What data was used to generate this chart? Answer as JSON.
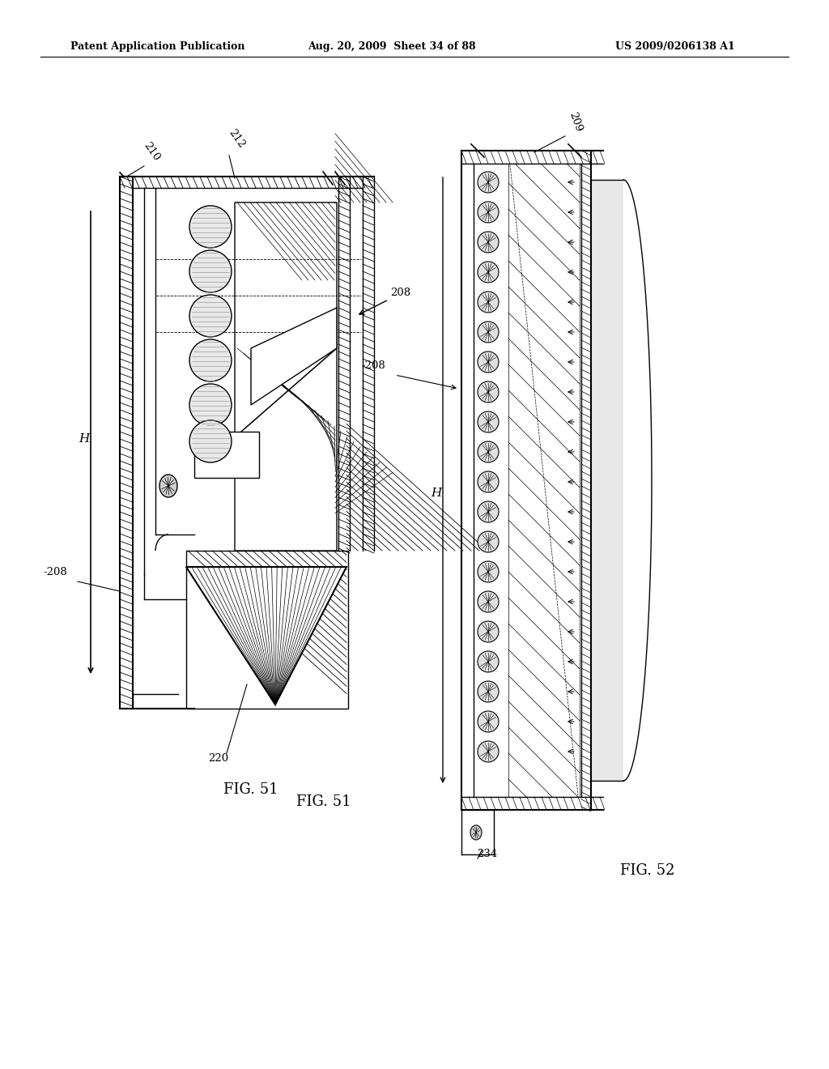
{
  "bg_color": "#ffffff",
  "header_left": "Patent Application Publication",
  "header_mid": "Aug. 20, 2009  Sheet 34 of 88",
  "header_right": "US 2009/0206138 A1",
  "fig51_label": "FIG. 51",
  "fig52_label": "FIG. 52",
  "label_208_left": "-208",
  "label_210": "210",
  "label_212": "212",
  "label_220": "220",
  "label_208_right": "-208",
  "label_209": "209",
  "label_234": "234",
  "label_H": "H"
}
